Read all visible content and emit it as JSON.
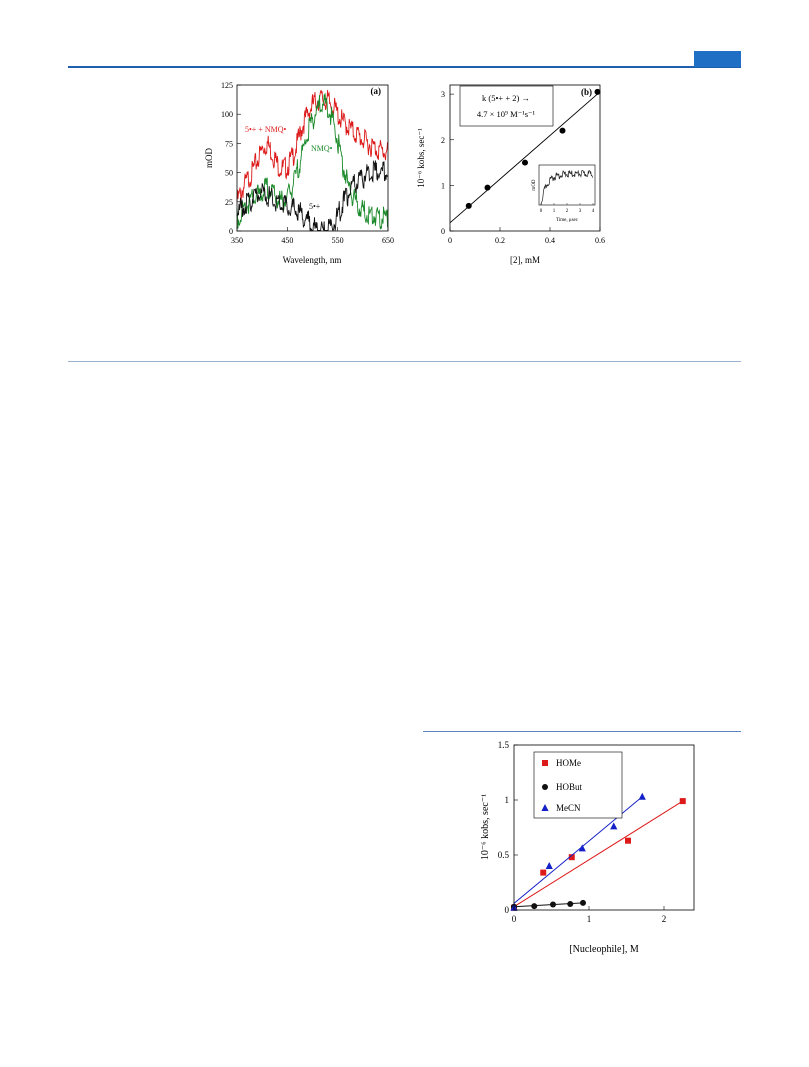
{
  "colors": {
    "header_blue": "#1f6fc4",
    "red_trace": "#dd1a1a",
    "green_trace": "#1a8a2a",
    "black_trace": "#111111",
    "blue_series": "#1420c8"
  },
  "chart_data": [
    {
      "type": "line",
      "panel_label": "(a)",
      "xlabel": "Wavelength, nm",
      "ylabel": "mOD",
      "xlim": [
        350,
        650
      ],
      "ylim": [
        0,
        125
      ],
      "xticks": [
        350,
        450,
        550,
        650
      ],
      "yticks": [
        0,
        25,
        50,
        75,
        100,
        125
      ],
      "series": [
        {
          "name": "5•+ + NMQ•",
          "color": "#dd1a1a",
          "x": [
            350,
            360,
            370,
            380,
            390,
            400,
            410,
            420,
            430,
            440,
            450,
            460,
            470,
            480,
            490,
            500,
            510,
            520,
            530,
            540,
            550,
            560,
            570,
            580,
            590,
            600,
            610,
            620,
            630,
            640,
            650
          ],
          "y": [
            30,
            40,
            48,
            55,
            65,
            75,
            80,
            72,
            62,
            58,
            60,
            68,
            80,
            95,
            105,
            113,
            117,
            118,
            116,
            112,
            105,
            98,
            95,
            90,
            87,
            83,
            80,
            77,
            75,
            73,
            72
          ]
        },
        {
          "name": "NMQ•",
          "color": "#1a8a2a",
          "x": [
            350,
            360,
            370,
            380,
            390,
            400,
            410,
            420,
            430,
            440,
            450,
            460,
            470,
            480,
            490,
            500,
            510,
            520,
            530,
            540,
            550,
            560,
            570,
            580,
            590,
            600,
            610,
            620,
            630,
            640,
            650
          ],
          "y": [
            15,
            22,
            28,
            32,
            35,
            38,
            42,
            38,
            32,
            30,
            33,
            42,
            57,
            72,
            88,
            100,
            110,
            114,
            112,
            100,
            82,
            62,
            45,
            35,
            27,
            22,
            20,
            18,
            17,
            16,
            15
          ]
        },
        {
          "name": "5•+",
          "color": "#111111",
          "x": [
            350,
            360,
            370,
            380,
            390,
            400,
            410,
            420,
            430,
            440,
            450,
            460,
            470,
            480,
            490,
            500,
            510,
            520,
            530,
            540,
            550,
            560,
            570,
            580,
            590,
            600,
            610,
            620,
            630,
            640,
            650
          ],
          "y": [
            20,
            25,
            28,
            33,
            36,
            37,
            35,
            32,
            30,
            29,
            27,
            24,
            22,
            18,
            14,
            9,
            5,
            3,
            5,
            10,
            18,
            28,
            36,
            43,
            47,
            51,
            54,
            56,
            57,
            56,
            55
          ]
        }
      ],
      "annotations": [
        "5•+ + NMQ•",
        "NMQ•",
        "5•+"
      ]
    },
    {
      "type": "scatter",
      "panel_label": "(b)",
      "xlabel": "[2], mM",
      "ylabel": "10⁻⁶ kobs, sec⁻¹",
      "xlim": [
        0,
        0.6
      ],
      "ylim": [
        0,
        3.2
      ],
      "xticks": [
        0,
        0.2,
        0.4,
        0.6
      ],
      "yticks": [
        0,
        1,
        2,
        3
      ],
      "points": {
        "x": [
          0.075,
          0.15,
          0.3,
          0.45,
          0.59
        ],
        "y": [
          0.55,
          0.95,
          1.5,
          2.2,
          3.05
        ]
      },
      "fit_line": {
        "x": [
          0,
          0.6
        ],
        "y": [
          0.18,
          3.05
        ]
      },
      "box_line1": "k (5•+ + 2) →",
      "box_line2": "4.7 × 10⁹ M⁻¹s⁻¹",
      "inset": {
        "xlabel": "Time, μsec",
        "ylabel": "mOD",
        "xticks": [
          0,
          1,
          2,
          3,
          4
        ],
        "xlim": [
          0,
          4
        ]
      }
    },
    {
      "type": "scatter",
      "xlabel": "[Nucleophile], M",
      "ylabel": "10⁻⁶ kobs, sec⁻¹",
      "xlim": [
        0,
        2.4
      ],
      "ylim": [
        0,
        1.5
      ],
      "xticks": [
        0,
        1,
        2
      ],
      "yticks": [
        0,
        0.5,
        1,
        1.5
      ],
      "series": [
        {
          "name": "HOMe",
          "color": "#dd1a1a",
          "marker": "square",
          "x": [
            0.0,
            0.39,
            0.77,
            1.52,
            2.25
          ],
          "y": [
            0.02,
            0.34,
            0.48,
            0.63,
            0.99
          ],
          "fit": {
            "x": [
              0,
              2.25
            ],
            "y": [
              0.03,
              0.99
            ]
          }
        },
        {
          "name": "HOBut",
          "color": "#111111",
          "marker": "circle",
          "x": [
            0.0,
            0.27,
            0.52,
            0.75,
            0.92
          ],
          "y": [
            0.03,
            0.035,
            0.05,
            0.055,
            0.065
          ],
          "fit": {
            "x": [
              0,
              0.92
            ],
            "y": [
              0.03,
              0.065
            ]
          }
        },
        {
          "name": "MeCN",
          "color": "#1420c8",
          "marker": "triangle",
          "x": [
            0.0,
            0.47,
            0.91,
            1.33,
            1.71
          ],
          "y": [
            0.02,
            0.4,
            0.56,
            0.76,
            1.03
          ],
          "fit": {
            "x": [
              0,
              1.71
            ],
            "y": [
              0.06,
              1.03
            ]
          }
        }
      ]
    }
  ]
}
